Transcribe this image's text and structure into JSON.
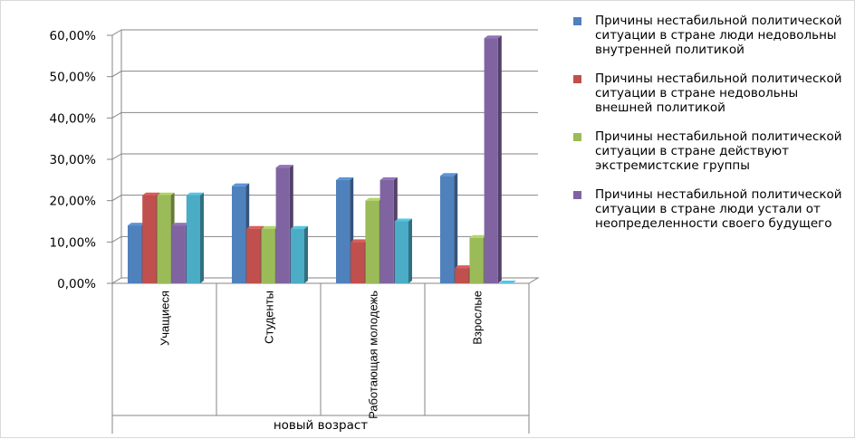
{
  "chart_data": {
    "type": "bar",
    "categories": [
      "Учащиеся",
      "Студенты",
      "Работающая молодежь",
      "Взрослые"
    ],
    "xlabel": "новый возраст",
    "ylim": [
      0,
      0.6
    ],
    "yticks": [
      "0,00%",
      "10,00%",
      "20,00%",
      "30,00%",
      "40,00%",
      "50,00%",
      "60,00%"
    ],
    "grid": true,
    "legend_position": "right",
    "series": [
      {
        "name": "Причины нестабильной политической ситуации в стране люди недовольны внутренней политикой",
        "color": "#4f81bd",
        "values": [
          0.14,
          0.235,
          0.25,
          0.26
        ]
      },
      {
        "name": "Причины нестабильной политической ситуации в стране недовольны внешней политикой",
        "color": "#c0504d",
        "values": [
          0.213,
          0.132,
          0.1,
          0.037
        ]
      },
      {
        "name": "Причины нестабильной политической ситуации в стране действуют экстремистские группы",
        "color": "#9bbb59",
        "values": [
          0.213,
          0.132,
          0.2,
          0.11
        ]
      },
      {
        "name": "Причины нестабильной политической ситуации в стране люди устали от неопределенности своего будущего",
        "color": "#8064a2",
        "values": [
          0.14,
          0.28,
          0.25,
          0.593
        ]
      },
      {
        "name": "",
        "color": "#4bacc6",
        "values": [
          0.213,
          0.132,
          0.15,
          0.0
        ]
      }
    ]
  }
}
